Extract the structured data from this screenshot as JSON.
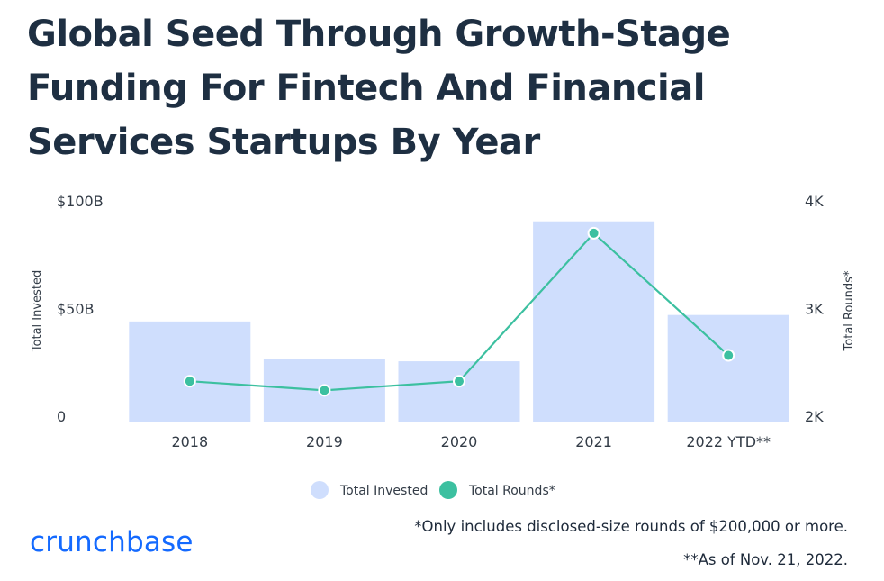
{
  "header": {
    "title": "Global Seed Through Growth-Stage Funding For Fintech And Financial Services Startups By Year"
  },
  "chart_data": {
    "type": "bar",
    "categories": [
      "2018",
      "2019",
      "2020",
      "2021",
      "2022 YTD**"
    ],
    "series": [
      {
        "name": "Total Invested",
        "type": "bar",
        "axis": "left",
        "values": [
          46.5,
          29,
          28,
          93,
          49.5
        ]
      },
      {
        "name": "Total Rounds*",
        "type": "line",
        "axis": "right",
        "values": [
          2375,
          2290,
          2375,
          3750,
          2615
        ]
      }
    ],
    "ylabel": "Total Invested",
    "ylabel_right": "Total Rounds*",
    "ylim": [
      0,
      100
    ],
    "ylim_right": [
      2000,
      4000
    ],
    "yticks": [
      {
        "value": 0,
        "label": "0"
      },
      {
        "value": 50,
        "label": "$50B"
      },
      {
        "value": 100,
        "label": "$100B"
      }
    ],
    "yticks_right": [
      {
        "value": 2000,
        "label": "2K"
      },
      {
        "value": 3000,
        "label": "3K"
      },
      {
        "value": 4000,
        "label": "4K"
      }
    ],
    "grid": false,
    "legend_position": "bottom",
    "colors": {
      "bar": "#cfdefd",
      "line": "#3cc0a0",
      "text": "#333c47"
    }
  },
  "footer": {
    "logo": "crunchbase",
    "note1": "*Only includes disclosed-size rounds of $200,000 or more.",
    "note2": "**As of Nov. 21, 2022."
  }
}
